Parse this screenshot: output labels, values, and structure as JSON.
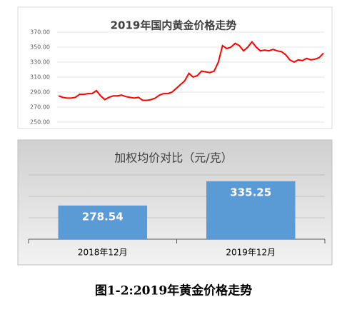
{
  "chart_data": [
    {
      "type": "line",
      "title": "2019年国内黄金价格走势",
      "series": [
        {
          "color": "#ff0000",
          "values": [
            285,
            283,
            282,
            282,
            283,
            287,
            287,
            288,
            288,
            292,
            285,
            280,
            283,
            285,
            285,
            286,
            284,
            283,
            282,
            283,
            279,
            279,
            280,
            282,
            286,
            288,
            288,
            290,
            295,
            300,
            305,
            315,
            310,
            312,
            318,
            317,
            316,
            318,
            330,
            352,
            348,
            350,
            355,
            352,
            345,
            350,
            357,
            350,
            345,
            346,
            345,
            347,
            345,
            344,
            340,
            333,
            330,
            333,
            332,
            335,
            333,
            334,
            336,
            342
          ]
        }
      ],
      "ylim": [
        250,
        370
      ],
      "yticks": [
        {
          "value": 250,
          "label": "250.00"
        },
        {
          "value": 270,
          "label": "270.00"
        },
        {
          "value": 290,
          "label": "290.00"
        },
        {
          "value": 310,
          "label": "310.00"
        },
        {
          "value": 330,
          "label": "330.00"
        },
        {
          "value": 350,
          "label": "350.00"
        },
        {
          "value": 370,
          "label": "370.00"
        }
      ],
      "grid": true
    },
    {
      "type": "bar",
      "title": "加权均价对比（元/克）",
      "categories": [
        "2018年12月",
        "2019年12月"
      ],
      "values": [
        278.54,
        335.25
      ],
      "color": "#5b9bd5",
      "ylim": [
        200,
        350
      ],
      "yticks": [
        200,
        250,
        300,
        350
      ],
      "grid": true,
      "tick_labels": false
    }
  ],
  "caption": "图1-2:2019年黄金价格走势"
}
